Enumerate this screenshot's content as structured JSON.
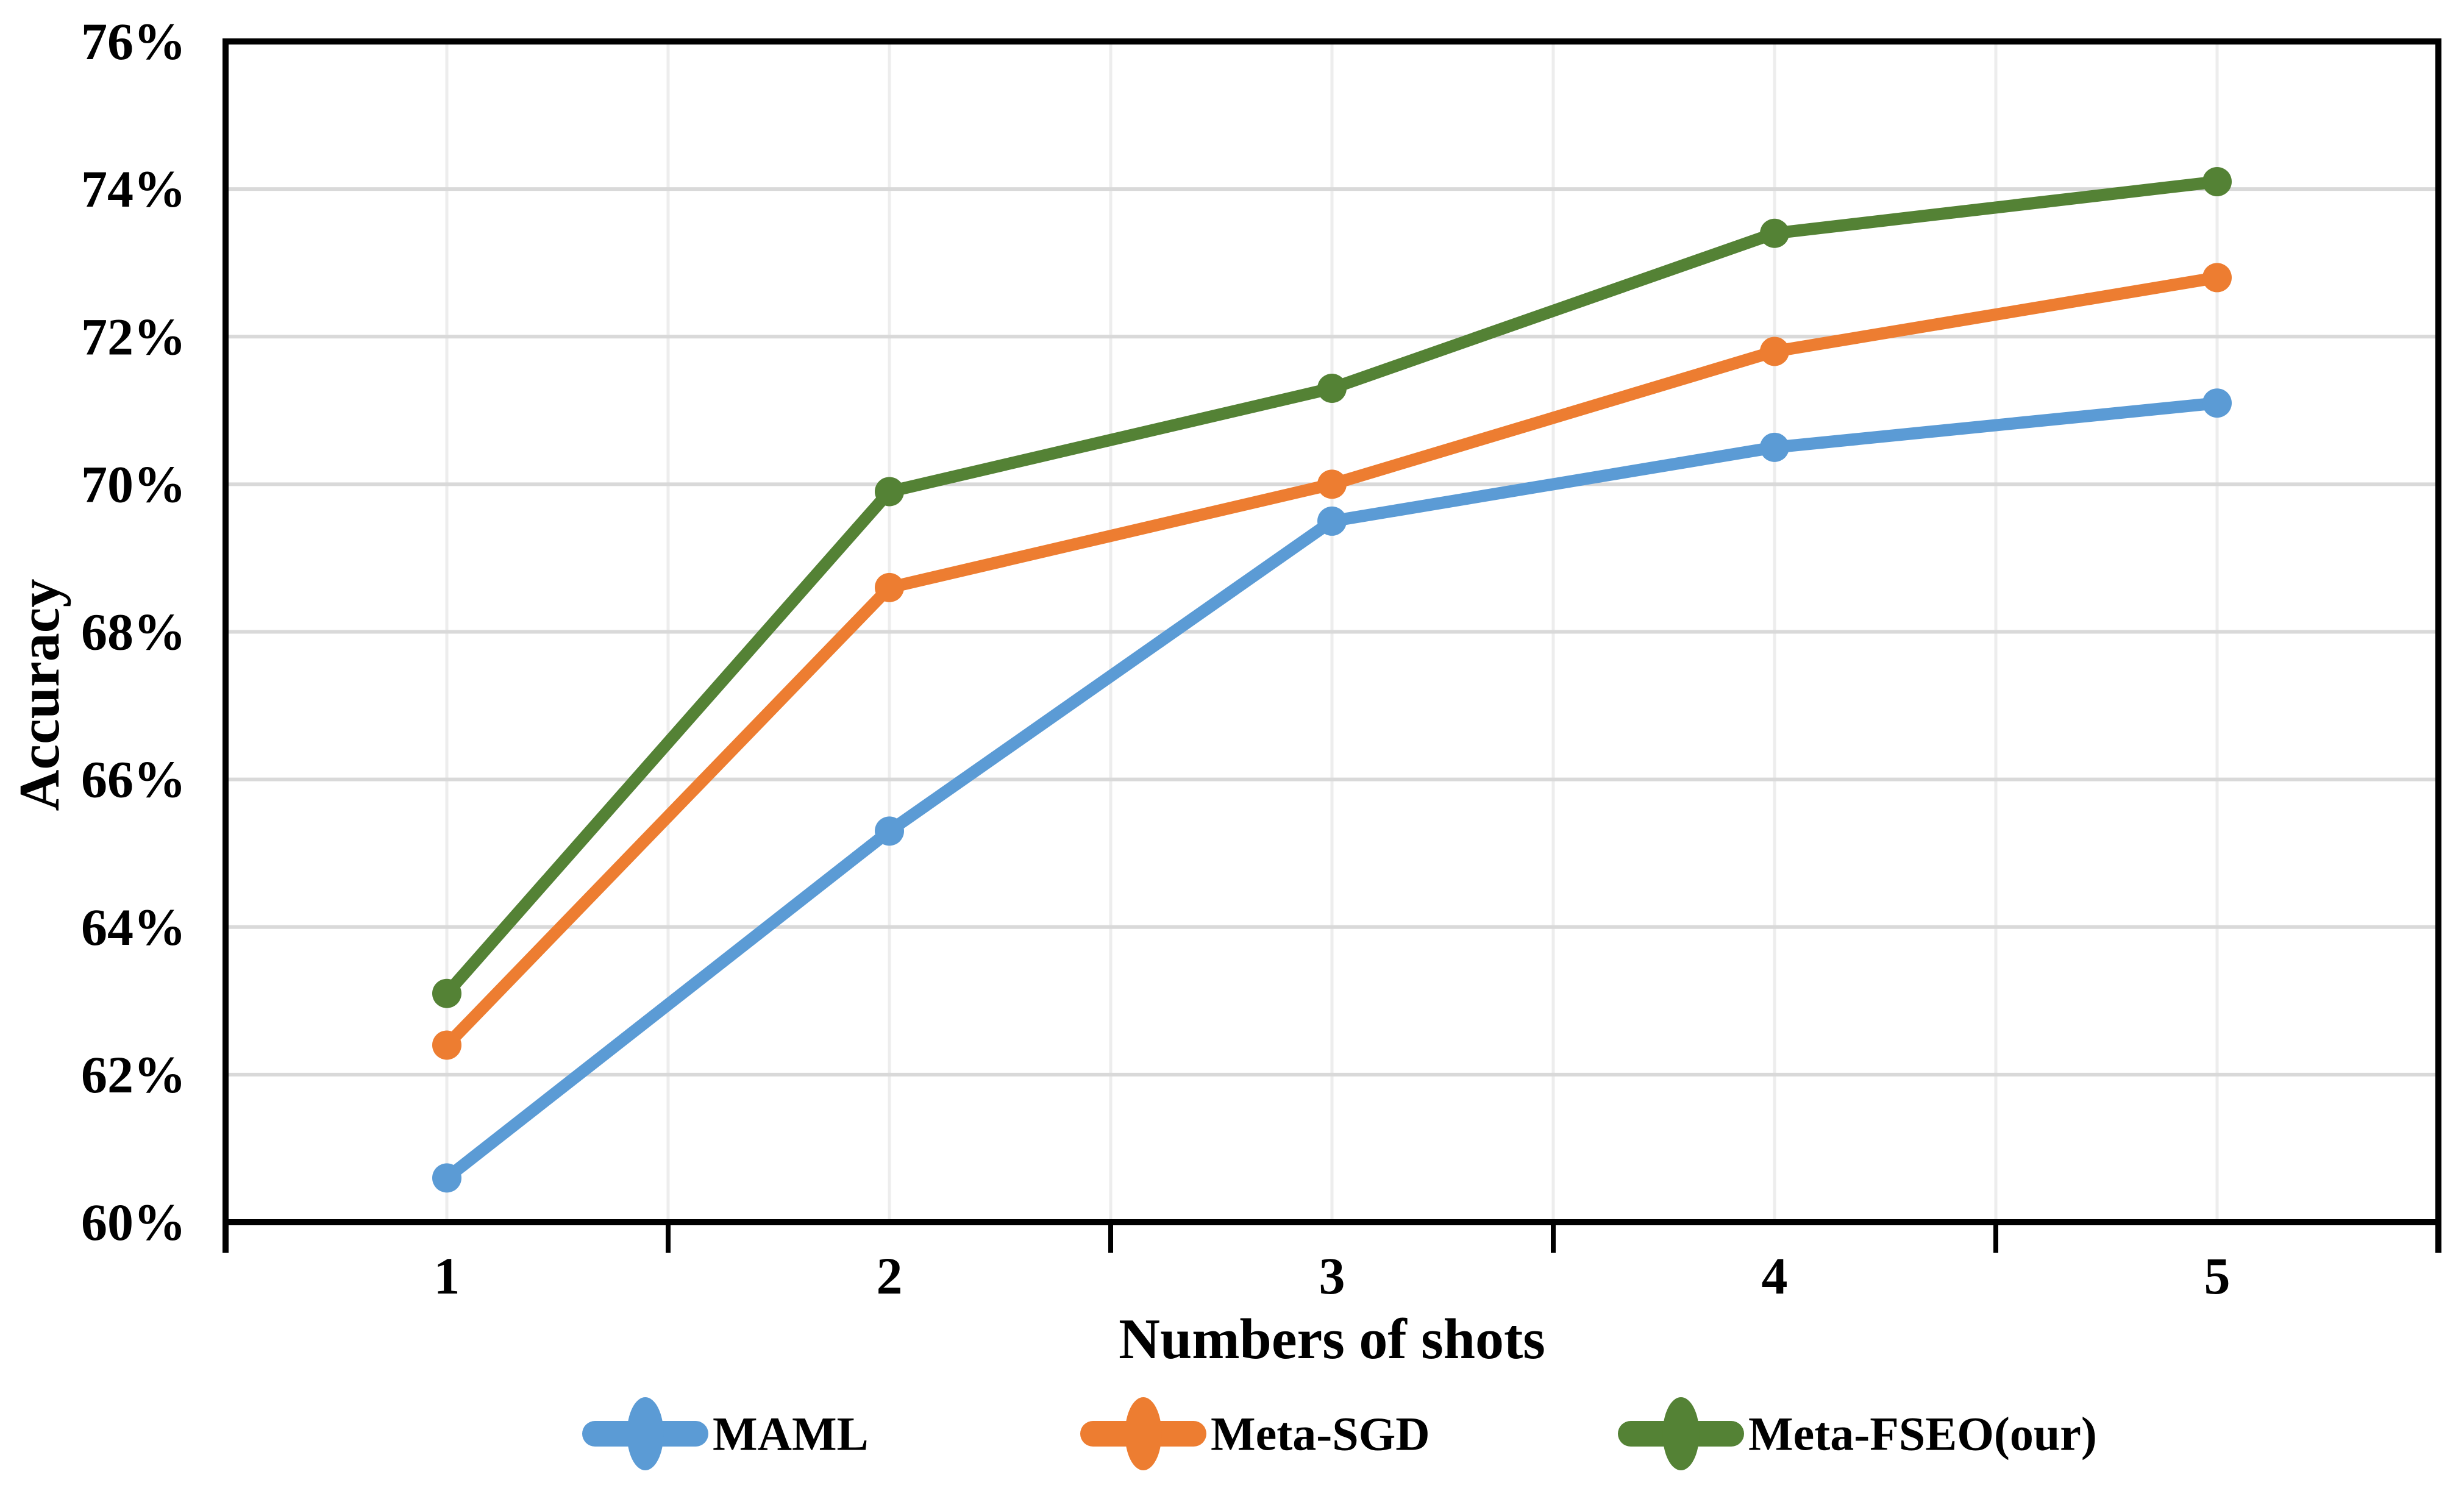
{
  "chart_data": {
    "type": "line",
    "title": "",
    "xlabel": "Numbers of shots",
    "ylabel": "Accuracy",
    "categories": [
      1,
      2,
      3,
      4,
      5
    ],
    "x_tick_labels": [
      "1",
      "2",
      "3",
      "4",
      "5"
    ],
    "y_ticks": [
      {
        "value": 60,
        "label": "60%"
      },
      {
        "value": 62,
        "label": "62%"
      },
      {
        "value": 64,
        "label": "64%"
      },
      {
        "value": 66,
        "label": "66%"
      },
      {
        "value": 68,
        "label": "68%"
      },
      {
        "value": 70,
        "label": "70%"
      },
      {
        "value": 72,
        "label": "72%"
      },
      {
        "value": 74,
        "label": "74%"
      },
      {
        "value": 76,
        "label": "76%"
      }
    ],
    "ylim": [
      60,
      76
    ],
    "xlim_categories": [
      0.5,
      5.5
    ],
    "grid": {
      "horizontal": true,
      "vertical": true,
      "vertical_step": 0.5
    },
    "legend_position": "bottom",
    "series": [
      {
        "name": "MAML",
        "color": "#5B9BD5",
        "values": [
          60.6,
          65.3,
          69.5,
          70.5,
          71.1
        ]
      },
      {
        "name": "Meta-SGD",
        "color": "#ED7D31",
        "values": [
          62.4,
          68.6,
          70.0,
          71.8,
          72.8
        ]
      },
      {
        "name": "Meta-FSEO(our)",
        "color": "#548235",
        "values": [
          63.1,
          69.9,
          71.3,
          73.4,
          74.1
        ]
      }
    ],
    "colors": {
      "axis": "#000000",
      "horizontal_gridline": "#D9D9D9",
      "vertical_gridline": "#EDEDED",
      "background": "#FFFFFF"
    }
  }
}
